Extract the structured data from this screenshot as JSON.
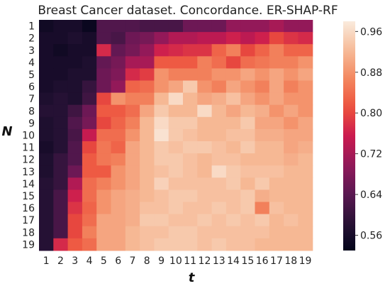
{
  "chart_data": {
    "type": "heatmap",
    "title": "Breast Cancer  dataset. Concordance. ER-SHAP-RF",
    "xlabel": "t",
    "ylabel": "N",
    "x": [
      "1",
      "2",
      "3",
      "4",
      "5",
      "6",
      "7",
      "8",
      "9",
      "10",
      "11",
      "12",
      "13",
      "14",
      "15",
      "16",
      "17",
      "18",
      "19"
    ],
    "y": [
      "1",
      "2",
      "3",
      "4",
      "5",
      "6",
      "7",
      "8",
      "9",
      "10",
      "11",
      "12",
      "13",
      "14",
      "15",
      "16",
      "17",
      "18",
      "19"
    ],
    "values": [
      [
        0.55,
        0.56,
        0.56,
        0.54,
        0.63,
        0.63,
        0.63,
        0.62,
        0.62,
        0.62,
        0.66,
        0.66,
        0.66,
        0.7,
        0.7,
        0.7,
        0.72,
        0.7,
        0.7
      ],
      [
        0.56,
        0.56,
        0.57,
        0.56,
        0.63,
        0.62,
        0.66,
        0.67,
        0.7,
        0.73,
        0.73,
        0.74,
        0.74,
        0.76,
        0.74,
        0.76,
        0.8,
        0.78,
        0.77
      ],
      [
        0.56,
        0.55,
        0.56,
        0.56,
        0.77,
        0.65,
        0.67,
        0.7,
        0.76,
        0.77,
        0.78,
        0.78,
        0.83,
        0.86,
        0.8,
        0.83,
        0.86,
        0.83,
        0.83
      ],
      [
        0.56,
        0.56,
        0.56,
        0.57,
        0.65,
        0.67,
        0.72,
        0.72,
        0.82,
        0.82,
        0.82,
        0.86,
        0.84,
        0.8,
        0.84,
        0.85,
        0.86,
        0.86,
        0.88
      ],
      [
        0.56,
        0.56,
        0.57,
        0.57,
        0.66,
        0.68,
        0.77,
        0.79,
        0.88,
        0.86,
        0.86,
        0.86,
        0.88,
        0.88,
        0.9,
        0.88,
        0.9,
        0.88,
        0.9
      ],
      [
        0.56,
        0.57,
        0.57,
        0.6,
        0.66,
        0.7,
        0.83,
        0.84,
        0.88,
        0.9,
        0.94,
        0.88,
        0.86,
        0.9,
        0.88,
        0.86,
        0.9,
        0.86,
        0.88
      ],
      [
        0.57,
        0.58,
        0.57,
        0.61,
        0.8,
        0.88,
        0.86,
        0.86,
        0.92,
        0.96,
        0.92,
        0.9,
        0.91,
        0.93,
        0.9,
        0.88,
        0.9,
        0.88,
        0.88
      ],
      [
        0.58,
        0.58,
        0.61,
        0.66,
        0.82,
        0.82,
        0.84,
        0.9,
        0.94,
        0.92,
        0.92,
        0.96,
        0.92,
        0.9,
        0.92,
        0.91,
        0.88,
        0.9,
        0.88
      ],
      [
        0.57,
        0.58,
        0.63,
        0.67,
        0.8,
        0.83,
        0.86,
        0.92,
        0.96,
        0.94,
        0.94,
        0.92,
        0.92,
        0.92,
        0.94,
        0.9,
        0.9,
        0.88,
        0.9
      ],
      [
        0.57,
        0.58,
        0.62,
        0.75,
        0.84,
        0.84,
        0.88,
        0.92,
        0.97,
        0.94,
        0.93,
        0.92,
        0.92,
        0.93,
        0.93,
        0.91,
        0.91,
        0.9,
        0.9
      ],
      [
        0.56,
        0.58,
        0.63,
        0.8,
        0.85,
        0.83,
        0.9,
        0.92,
        0.94,
        0.93,
        0.94,
        0.94,
        0.93,
        0.92,
        0.94,
        0.92,
        0.92,
        0.9,
        0.91
      ],
      [
        0.57,
        0.6,
        0.63,
        0.82,
        0.85,
        0.86,
        0.9,
        0.92,
        0.94,
        0.94,
        0.93,
        0.92,
        0.93,
        0.93,
        0.92,
        0.92,
        0.92,
        0.91,
        0.92
      ],
      [
        0.57,
        0.6,
        0.66,
        0.82,
        0.82,
        0.88,
        0.9,
        0.92,
        0.93,
        0.94,
        0.93,
        0.92,
        0.96,
        0.94,
        0.93,
        0.93,
        0.93,
        0.92,
        0.92
      ],
      [
        0.58,
        0.6,
        0.73,
        0.84,
        0.86,
        0.88,
        0.9,
        0.92,
        0.95,
        0.93,
        0.93,
        0.93,
        0.93,
        0.94,
        0.92,
        0.94,
        0.92,
        0.92,
        0.92
      ],
      [
        0.58,
        0.62,
        0.76,
        0.84,
        0.88,
        0.9,
        0.91,
        0.92,
        0.93,
        0.94,
        0.94,
        0.93,
        0.93,
        0.93,
        0.94,
        0.91,
        0.92,
        0.92,
        0.92
      ],
      [
        0.58,
        0.62,
        0.78,
        0.83,
        0.88,
        0.9,
        0.91,
        0.93,
        0.93,
        0.94,
        0.93,
        0.93,
        0.94,
        0.93,
        0.94,
        0.86,
        0.93,
        0.92,
        0.92
      ],
      [
        0.58,
        0.62,
        0.8,
        0.84,
        0.9,
        0.9,
        0.91,
        0.94,
        0.94,
        0.93,
        0.93,
        0.94,
        0.93,
        0.94,
        0.93,
        0.94,
        0.92,
        0.93,
        0.92
      ],
      [
        0.58,
        0.62,
        0.8,
        0.86,
        0.9,
        0.9,
        0.92,
        0.93,
        0.93,
        0.94,
        0.94,
        0.93,
        0.93,
        0.93,
        0.93,
        0.93,
        0.92,
        0.92,
        0.92
      ],
      [
        0.58,
        0.77,
        0.82,
        0.84,
        0.9,
        0.9,
        0.92,
        0.93,
        0.94,
        0.94,
        0.94,
        0.93,
        0.94,
        0.93,
        0.93,
        0.92,
        0.92,
        0.92,
        0.92
      ]
    ],
    "colorbar": {
      "colormap": "rocket",
      "range": [
        0.53,
        0.98
      ],
      "ticks": [
        0.56,
        0.64,
        0.72,
        0.8,
        0.88,
        0.96
      ],
      "tick_labels": [
        "0.56",
        "0.64",
        "0.72",
        "0.80",
        "0.88",
        "0.96"
      ]
    }
  }
}
